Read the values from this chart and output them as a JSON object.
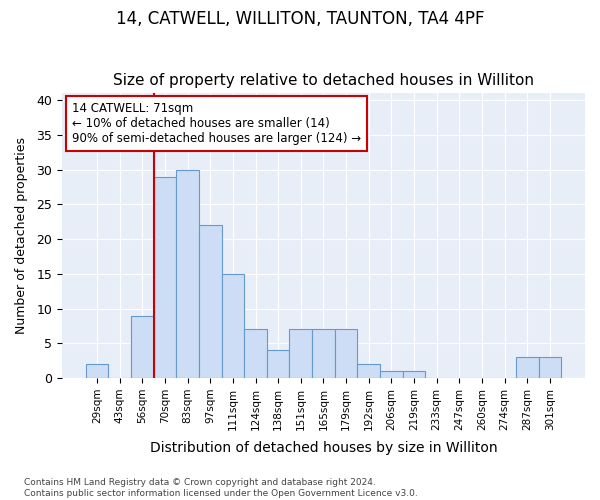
{
  "title": "14, CATWELL, WILLITON, TAUNTON, TA4 4PF",
  "subtitle": "Size of property relative to detached houses in Williton",
  "xlabel": "Distribution of detached houses by size in Williton",
  "ylabel": "Number of detached properties",
  "categories": [
    "29sqm",
    "43sqm",
    "56sqm",
    "70sqm",
    "83sqm",
    "97sqm",
    "111sqm",
    "124sqm",
    "138sqm",
    "151sqm",
    "165sqm",
    "179sqm",
    "192sqm",
    "206sqm",
    "219sqm",
    "233sqm",
    "247sqm",
    "260sqm",
    "274sqm",
    "287sqm",
    "301sqm"
  ],
  "values": [
    2,
    0,
    9,
    29,
    30,
    22,
    15,
    7,
    4,
    7,
    7,
    7,
    2,
    1,
    1,
    0,
    0,
    0,
    0,
    3,
    3
  ],
  "bar_color": "#ccddf5",
  "bar_edge_color": "#6699cc",
  "vline_index": 3,
  "vline_color": "#cc0000",
  "annotation_text": "14 CATWELL: 71sqm\n← 10% of detached houses are smaller (14)\n90% of semi-detached houses are larger (124) →",
  "annotation_box_facecolor": "#ffffff",
  "annotation_box_edgecolor": "#cc0000",
  "ylim": [
    0,
    41
  ],
  "yticks": [
    0,
    5,
    10,
    15,
    20,
    25,
    30,
    35,
    40
  ],
  "footer_line1": "Contains HM Land Registry data © Crown copyright and database right 2024.",
  "footer_line2": "Contains public sector information licensed under the Open Government Licence v3.0.",
  "fig_facecolor": "#ffffff",
  "plot_facecolor": "#e8eef8",
  "grid_color": "#ffffff",
  "title_fontsize": 12,
  "subtitle_fontsize": 11
}
